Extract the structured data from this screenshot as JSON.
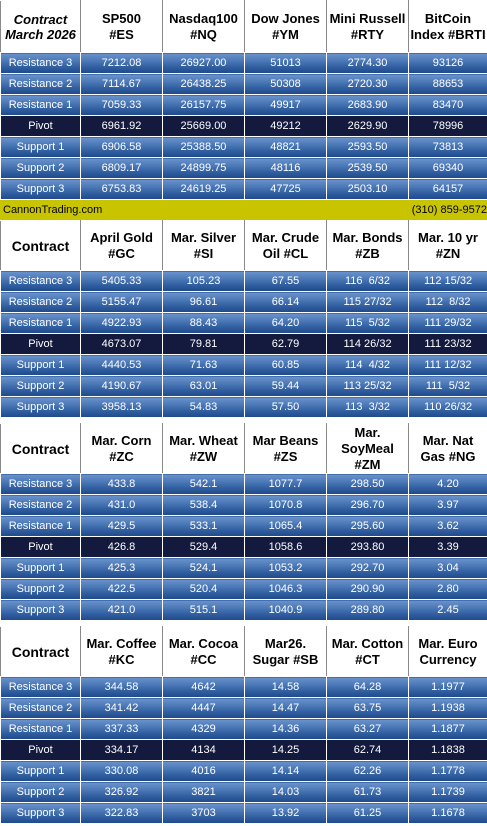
{
  "row_labels": [
    "Resistance 3",
    "Resistance 2",
    "Resistance 1",
    "Pivot",
    "Support 1",
    "Support 2",
    "Support 3"
  ],
  "banner": {
    "site": "CannonTrading.com",
    "phone": "(310) 859-9572"
  },
  "blocks": [
    {
      "corner": [
        "Contract",
        "March 2026"
      ],
      "headers": [
        [
          "SP500",
          "#ES"
        ],
        [
          "Nasdaq100",
          "#NQ"
        ],
        [
          "Dow Jones",
          "#YM"
        ],
        [
          "Mini Russell",
          "#RTY"
        ],
        [
          "BitCoin",
          "Index #BRTI"
        ]
      ],
      "rows": [
        [
          "7212.08",
          "26927.00",
          "51013",
          "2774.30",
          "93126"
        ],
        [
          "7114.67",
          "26438.25",
          "50308",
          "2720.30",
          "88653"
        ],
        [
          "7059.33",
          "26157.75",
          "49917",
          "2683.90",
          "83470"
        ],
        [
          "6961.92",
          "25669.00",
          "49212",
          "2629.90",
          "78996"
        ],
        [
          "6906.58",
          "25388.50",
          "48821",
          "2593.50",
          "73813"
        ],
        [
          "6809.17",
          "24899.75",
          "48116",
          "2539.50",
          "69340"
        ],
        [
          "6753.83",
          "24619.25",
          "47725",
          "2503.10",
          "64157"
        ]
      ]
    },
    {
      "corner": [
        "Contract"
      ],
      "headers": [
        [
          "April Gold",
          "#GC"
        ],
        [
          "Mar. Silver",
          "#SI"
        ],
        [
          "Mar. Crude",
          "Oil #CL"
        ],
        [
          "Mar. Bonds",
          "#ZB"
        ],
        [
          "Mar. 10 yr",
          "#ZN"
        ]
      ],
      "rows": [
        [
          "5405.33",
          "105.23",
          "67.55",
          "116  6/32",
          "112 15/32"
        ],
        [
          "5155.47",
          "96.61",
          "66.14",
          "115 27/32",
          "112  8/32"
        ],
        [
          "4922.93",
          "88.43",
          "64.20",
          "115  5/32",
          "111 29/32"
        ],
        [
          "4673.07",
          "79.81",
          "62.79",
          "114 26/32",
          "111 23/32"
        ],
        [
          "4440.53",
          "71.63",
          "60.85",
          "114  4/32",
          "111 12/32"
        ],
        [
          "4190.67",
          "63.01",
          "59.44",
          "113 25/32",
          "111  5/32"
        ],
        [
          "3958.13",
          "54.83",
          "57.50",
          "113  3/32",
          "110 26/32"
        ]
      ]
    },
    {
      "corner": [
        "Contract"
      ],
      "headers": [
        [
          "Mar. Corn",
          "#ZC"
        ],
        [
          "Mar.  Wheat",
          "#ZW"
        ],
        [
          "Mar Beans",
          "#ZS"
        ],
        [
          "Mar.",
          "SoyMeal",
          "#ZM"
        ],
        [
          "Mar. Nat",
          "Gas #NG"
        ]
      ],
      "rows": [
        [
          "433.8",
          "542.1",
          "1077.7",
          "298.50",
          "4.20"
        ],
        [
          "431.0",
          "538.4",
          "1070.8",
          "296.70",
          "3.97"
        ],
        [
          "429.5",
          "533.1",
          "1065.4",
          "295.60",
          "3.62"
        ],
        [
          "426.8",
          "529.4",
          "1058.6",
          "293.80",
          "3.39"
        ],
        [
          "425.3",
          "524.1",
          "1053.2",
          "292.70",
          "3.04"
        ],
        [
          "422.5",
          "520.4",
          "1046.3",
          "290.90",
          "2.80"
        ],
        [
          "421.0",
          "515.1",
          "1040.9",
          "289.80",
          "2.45"
        ]
      ]
    },
    {
      "corner": [
        "Contract"
      ],
      "headers": [
        [
          "Mar. Coffee",
          "#KC"
        ],
        [
          "Mar. Cocoa",
          "#CC"
        ],
        [
          "Mar26.",
          "Sugar #SB"
        ],
        [
          "Mar. Cotton",
          "#CT"
        ],
        [
          "Mar. Euro",
          "Currency"
        ]
      ],
      "rows": [
        [
          "344.58",
          "4642",
          "14.58",
          "64.28",
          "1.1977"
        ],
        [
          "341.42",
          "4447",
          "14.47",
          "63.75",
          "1.1938"
        ],
        [
          "337.33",
          "4329",
          "14.36",
          "63.27",
          "1.1877"
        ],
        [
          "334.17",
          "4134",
          "14.25",
          "62.74",
          "1.1838"
        ],
        [
          "330.08",
          "4016",
          "14.14",
          "62.26",
          "1.1778"
        ],
        [
          "326.92",
          "3821",
          "14.03",
          "61.73",
          "1.1739"
        ],
        [
          "322.83",
          "3703",
          "13.92",
          "61.25",
          "1.1678"
        ]
      ]
    }
  ]
}
